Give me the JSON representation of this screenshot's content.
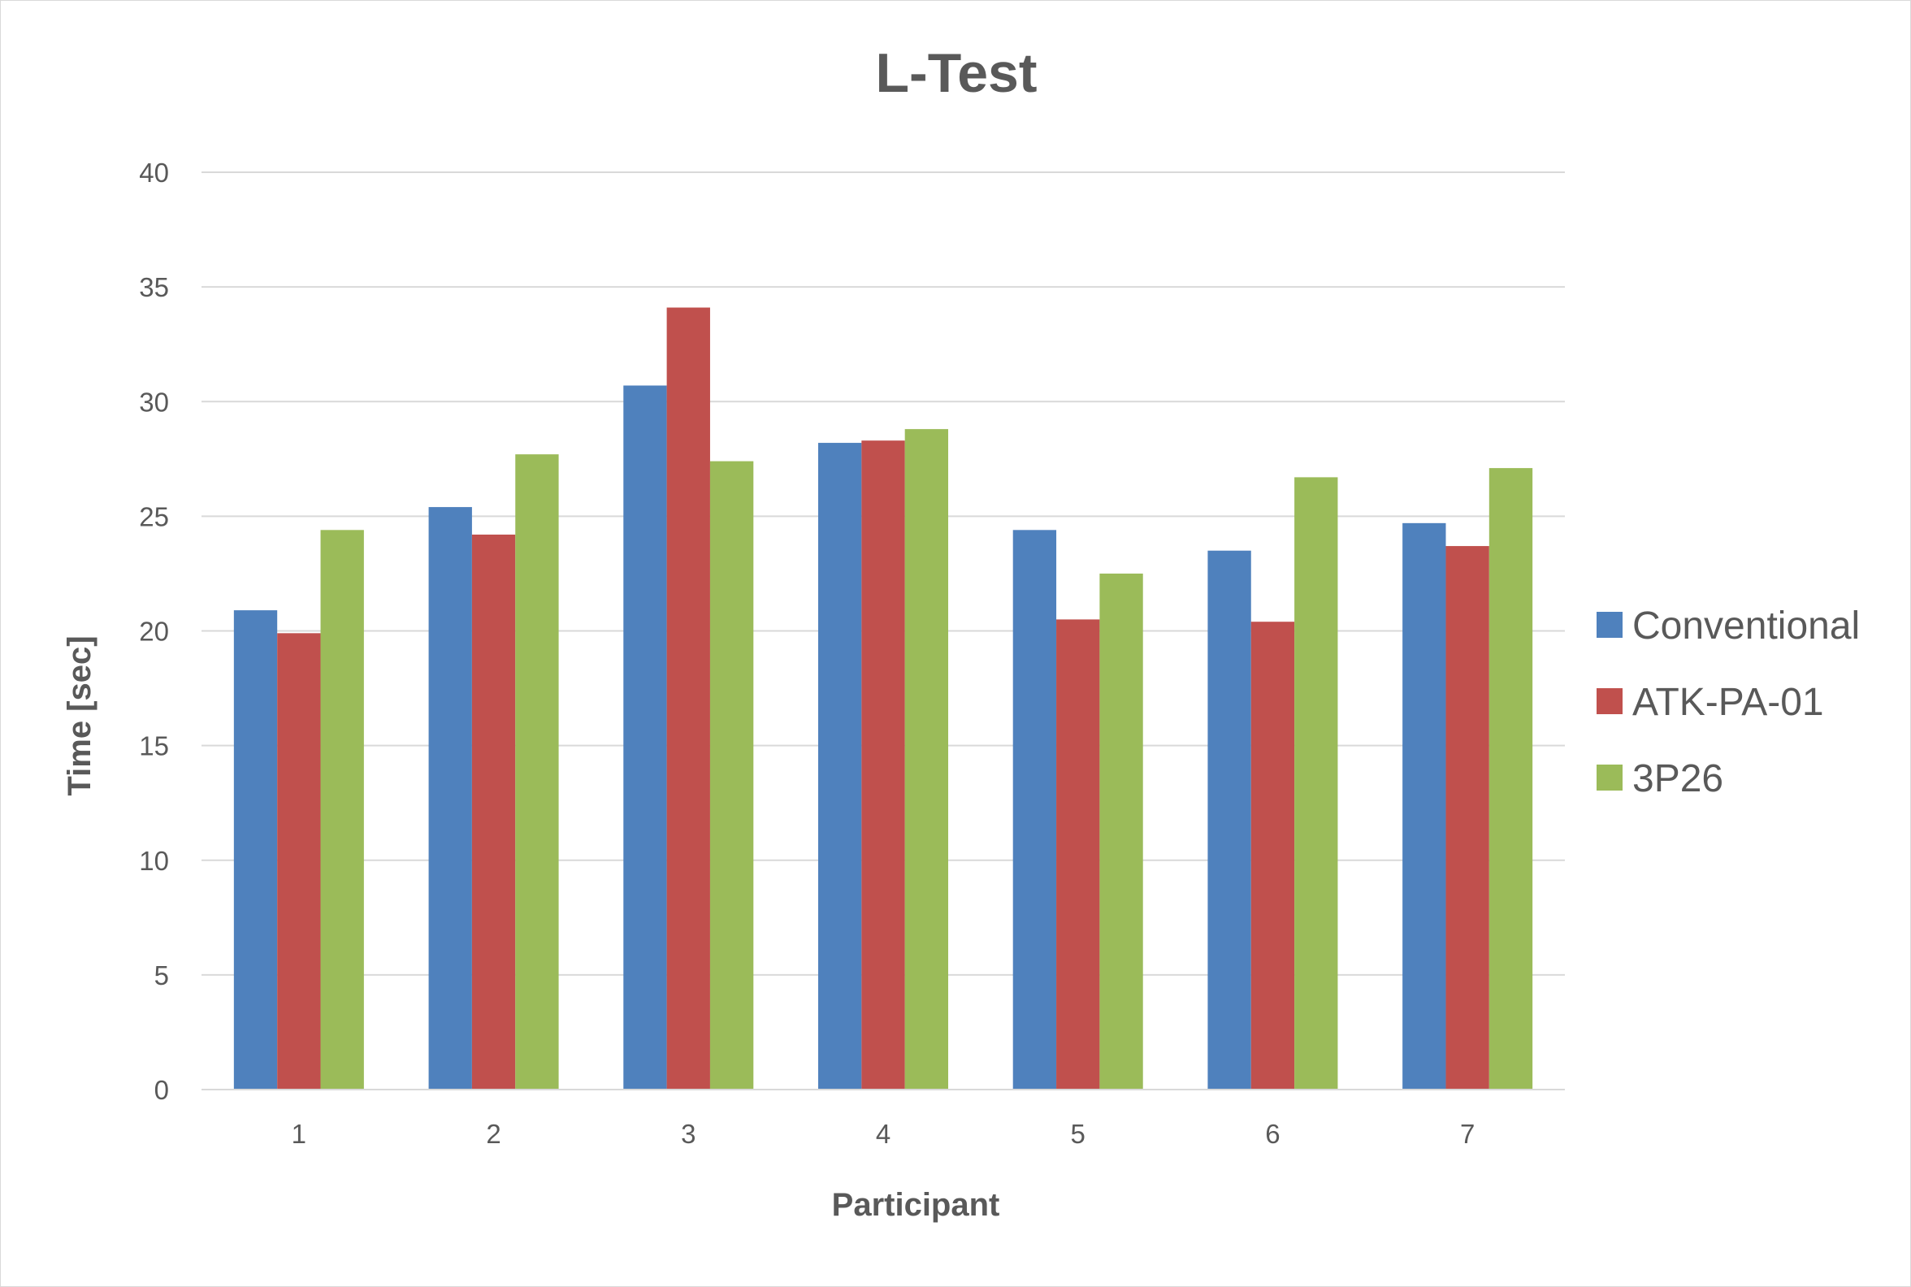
{
  "chart_data": {
    "type": "bar",
    "title": "L-Test",
    "xlabel": "Participant",
    "ylabel": "Time [sec]",
    "categories": [
      "1",
      "2",
      "3",
      "4",
      "5",
      "6",
      "7"
    ],
    "ylim": [
      0,
      40
    ],
    "yticks": [
      "0",
      "5",
      "10",
      "15",
      "20",
      "25",
      "30",
      "35",
      "40"
    ],
    "grid": true,
    "legend_position": "right",
    "series": [
      {
        "name": "Conventional",
        "color": "#4f81bd",
        "values": [
          20.9,
          25.4,
          30.7,
          28.2,
          24.4,
          23.5,
          24.7
        ]
      },
      {
        "name": "ATK-PA-01",
        "color": "#c0504d",
        "values": [
          19.9,
          24.2,
          34.1,
          28.3,
          20.5,
          20.4,
          23.7
        ]
      },
      {
        "name": "3P26",
        "color": "#9bbb59",
        "values": [
          24.4,
          27.7,
          27.4,
          28.8,
          22.5,
          26.7,
          27.1
        ]
      }
    ]
  }
}
